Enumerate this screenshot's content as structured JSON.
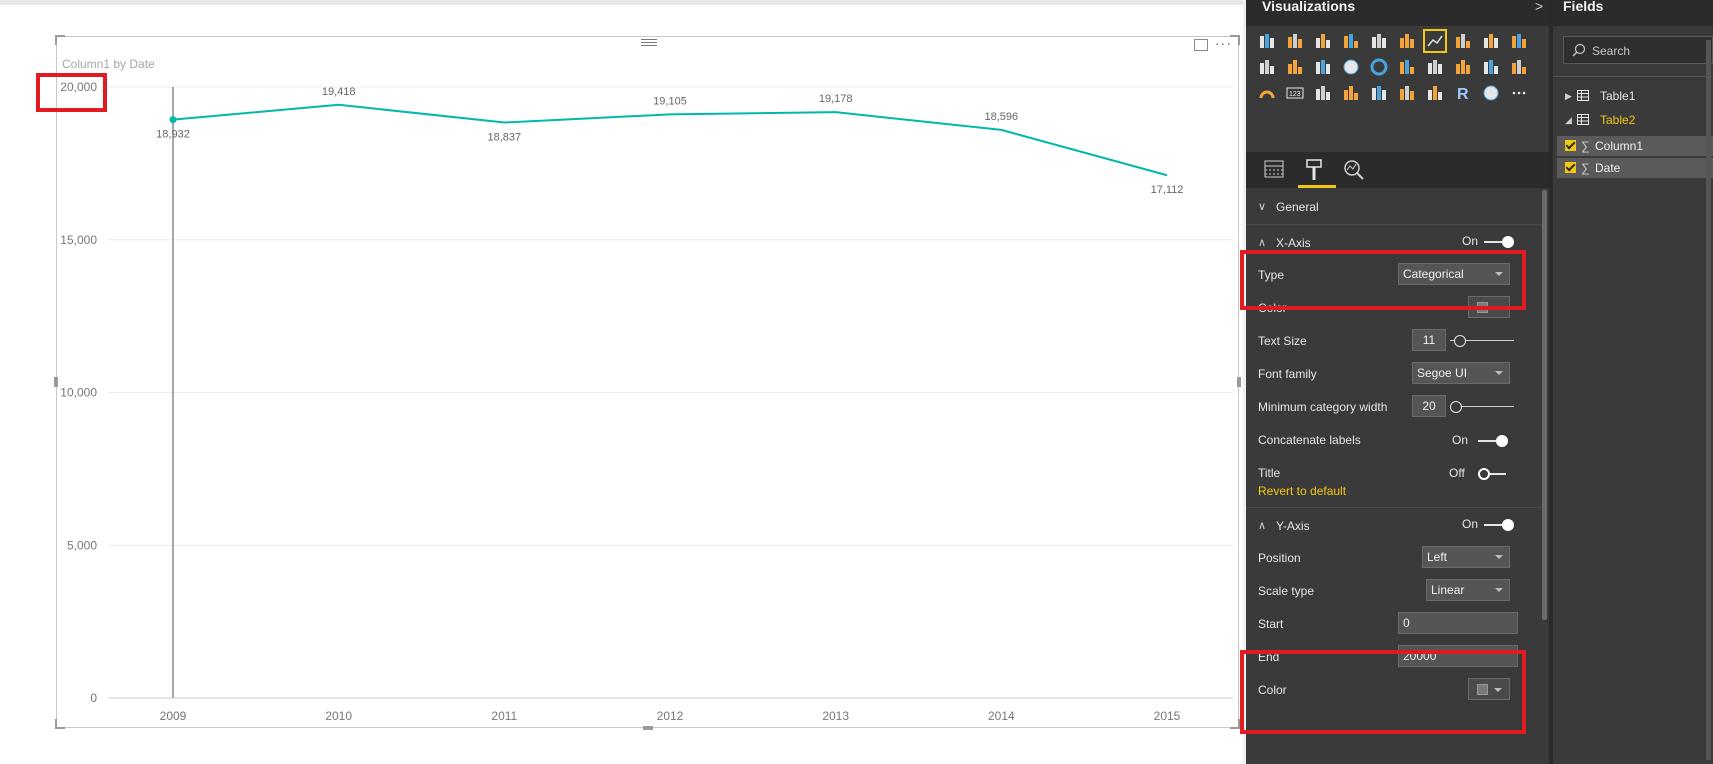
{
  "visual": {
    "title": "Column1 by Date"
  },
  "chart_data": {
    "type": "line",
    "title": "Column1 by Date",
    "categories": [
      "2009",
      "2010",
      "2011",
      "2012",
      "2013",
      "2014",
      "2015"
    ],
    "series": [
      {
        "name": "Column1",
        "values": [
          18932,
          19418,
          18837,
          19105,
          19178,
          18596,
          17112
        ],
        "color": "#01b8aa"
      }
    ],
    "data_labels": [
      "18,932",
      "19,418",
      "18,837",
      "19,105",
      "19,178",
      "18,596",
      "17,112"
    ],
    "y_ticks": [
      "0",
      "5,000",
      "10,000",
      "15,000",
      "20,000"
    ],
    "y_tick_values": [
      0,
      5000,
      10000,
      15000,
      20000
    ],
    "ylim": [
      0,
      20000
    ],
    "grid": true,
    "xlabel": "",
    "ylabel": ""
  },
  "visualizations": {
    "title": "Visualizations",
    "icons": [
      "stacked-bar-icon",
      "stacked-column-icon",
      "clustered-bar-icon",
      "clustered-column-icon",
      "100-bar-icon",
      "100-column-icon",
      "line-chart-icon",
      "area-chart-icon",
      "stacked-area-icon",
      "line-column-icon",
      "line-clustered-column-icon",
      "ribbon-icon",
      "scatter-icon",
      "pie-icon",
      "donut-icon",
      "treemap-icon",
      "map-icon",
      "filled-map-icon",
      "shape-map-icon",
      "funnel-icon",
      "gauge-icon",
      "card-icon",
      "multirow-card-icon",
      "kpi-icon",
      "slicer-icon",
      "table-icon",
      "matrix-icon",
      "r-visual-icon",
      "globe-icon",
      "more-icon"
    ],
    "tabs": [
      "fields-tab",
      "format-tab",
      "analytics-tab"
    ]
  },
  "format": {
    "general": {
      "title": "General"
    },
    "xaxis": {
      "title": "X-Axis",
      "state": "On",
      "type_label": "Type",
      "type_value": "Categorical",
      "color_label": "Color",
      "text_size_label": "Text Size",
      "text_size_value": "11",
      "font_family_label": "Font family",
      "font_family_value": "Segoe UI",
      "min_cat_width_label": "Minimum category width",
      "min_cat_width_value": "20",
      "concat_label": "Concatenate labels",
      "concat_state": "On",
      "title_label": "Title",
      "title_state": "Off",
      "revert": "Revert to default"
    },
    "yaxis": {
      "title": "Y-Axis",
      "state": "On",
      "position_label": "Position",
      "position_value": "Left",
      "scale_label": "Scale type",
      "scale_value": "Linear",
      "start_label": "Start",
      "start_value": "0",
      "end_label": "End",
      "end_value": "20000",
      "color_label": "Color"
    }
  },
  "fields": {
    "title": "Fields",
    "search_placeholder": "Search",
    "tables": [
      {
        "name": "Table1"
      },
      {
        "name": "Table2"
      }
    ],
    "items": [
      {
        "name": "Column1"
      },
      {
        "name": "Date"
      }
    ]
  },
  "colors": {
    "accent": "#f2c811",
    "line": "#01b8aa",
    "highlight": "#e11b22"
  }
}
